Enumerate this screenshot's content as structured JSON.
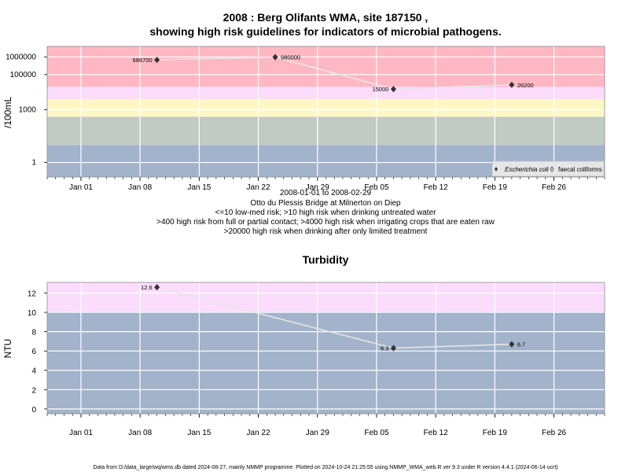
{
  "chart_data": [
    {
      "type": "line",
      "title": "2008 : Berg Olifants WMA, site 187150 ,",
      "title_line2": "showing high risk guidelines for indicators of microbial pathogens.",
      "ylabel": "/100mL",
      "y_scale": "log",
      "ylim": [
        0.15,
        4000000
      ],
      "xlim": [
        "2007-12-28",
        "2008-03-03"
      ],
      "x_ticks": [
        {
          "date": "2008-01-01",
          "label": "Jan 01"
        },
        {
          "date": "2008-01-08",
          "label": "Jan 08"
        },
        {
          "date": "2008-01-15",
          "label": "Jan 15"
        },
        {
          "date": "2008-01-22",
          "label": "Jan 22"
        },
        {
          "date": "2008-01-29",
          "label": "Jan 29"
        },
        {
          "date": "2008-02-05",
          "label": "Feb 05"
        },
        {
          "date": "2008-02-12",
          "label": "Feb 12"
        },
        {
          "date": "2008-02-19",
          "label": "Feb 19"
        },
        {
          "date": "2008-02-26",
          "label": "Feb 26"
        }
      ],
      "y_ticks": [
        {
          "value": 1,
          "label": "1"
        },
        {
          "value": 1000,
          "label": "1000"
        },
        {
          "value": 100000,
          "label": "100000"
        },
        {
          "value": 1000000,
          "label": "1000000"
        }
      ],
      "bands": [
        {
          "from": 0.15,
          "to": 10,
          "color": "#a3b3cb"
        },
        {
          "from": 10,
          "to": 400,
          "color": "#c2cbc3"
        },
        {
          "from": 400,
          "to": 4000,
          "color": "#fdf8c4"
        },
        {
          "from": 4000,
          "to": 20000,
          "color": "#fbdcfd"
        },
        {
          "from": 20000,
          "to": 4000000,
          "color": "#ffb8c3"
        }
      ],
      "series": [
        {
          "name": "Escherichia coli",
          "marker": "diamond-filled",
          "color": "#333333",
          "points": [
            {
              "x": "2008-01-10",
              "y": 686700,
              "label": "686700"
            },
            {
              "x": "2008-01-24",
              "y": 980000,
              "label": "980000"
            },
            {
              "x": "2008-02-07",
              "y": 15000,
              "label": "15000"
            },
            {
              "x": "2008-02-21",
              "y": 26200,
              "label": "26200"
            }
          ]
        },
        {
          "name": "faecal coliforms",
          "marker": "diamond-open",
          "color": "#333333",
          "points": []
        }
      ],
      "legend_position": "bottom-right",
      "notes": [
        "2008-01-01 to 2008-02-29",
        "Otto du Plessis Bridge at Milnerton on Diep",
        "<=10 low-med risk; >10 high risk when drinking untreated water",
        ">400 high risk from full or partial contact; >4000 high risk when irrigating crops that are eaten raw",
        ">20000 high risk when drinking after only limited treatment"
      ]
    },
    {
      "type": "line",
      "title": "Turbidity",
      "ylabel": "NTU",
      "y_scale": "linear",
      "ylim": [
        -0.5,
        13.1
      ],
      "xlim": [
        "2007-12-28",
        "2008-03-03"
      ],
      "x_ticks": [
        {
          "date": "2008-01-01",
          "label": "Jan 01"
        },
        {
          "date": "2008-01-08",
          "label": "Jan 08"
        },
        {
          "date": "2008-01-15",
          "label": "Jan 15"
        },
        {
          "date": "2008-01-22",
          "label": "Jan 22"
        },
        {
          "date": "2008-01-29",
          "label": "Jan 29"
        },
        {
          "date": "2008-02-05",
          "label": "Feb 05"
        },
        {
          "date": "2008-02-12",
          "label": "Feb 12"
        },
        {
          "date": "2008-02-19",
          "label": "Feb 19"
        },
        {
          "date": "2008-02-26",
          "label": "Feb 26"
        }
      ],
      "y_ticks": [
        {
          "value": 0,
          "label": "0"
        },
        {
          "value": 2,
          "label": "2"
        },
        {
          "value": 4,
          "label": "4"
        },
        {
          "value": 6,
          "label": "6"
        },
        {
          "value": 8,
          "label": "8"
        },
        {
          "value": 10,
          "label": "10"
        },
        {
          "value": 12,
          "label": "12"
        }
      ],
      "bands": [
        {
          "from": -0.5,
          "to": 10,
          "color": "#a3b3cb"
        },
        {
          "from": 10,
          "to": 13.1,
          "color": "#fbdcfd"
        }
      ],
      "series": [
        {
          "marker": "diamond-filled",
          "color": "#333333",
          "points": [
            {
              "x": "2008-01-10",
              "y": 12.6,
              "label": "12.6"
            },
            {
              "x": "2008-02-07",
              "y": 6.3,
              "label": "6.3"
            },
            {
              "x": "2008-02-21",
              "y": 6.7,
              "label": "6.7"
            }
          ]
        }
      ]
    }
  ],
  "footer": "Data from D:/data_large/wq/wms.db dated 2024-08-27, mainly NMMP programme. Plotted on 2024-10-24 21:25:55 using NMMP_WMA_web.R ver 9.3 under R version 4.4.1 (2024-06-14 ucrt)"
}
